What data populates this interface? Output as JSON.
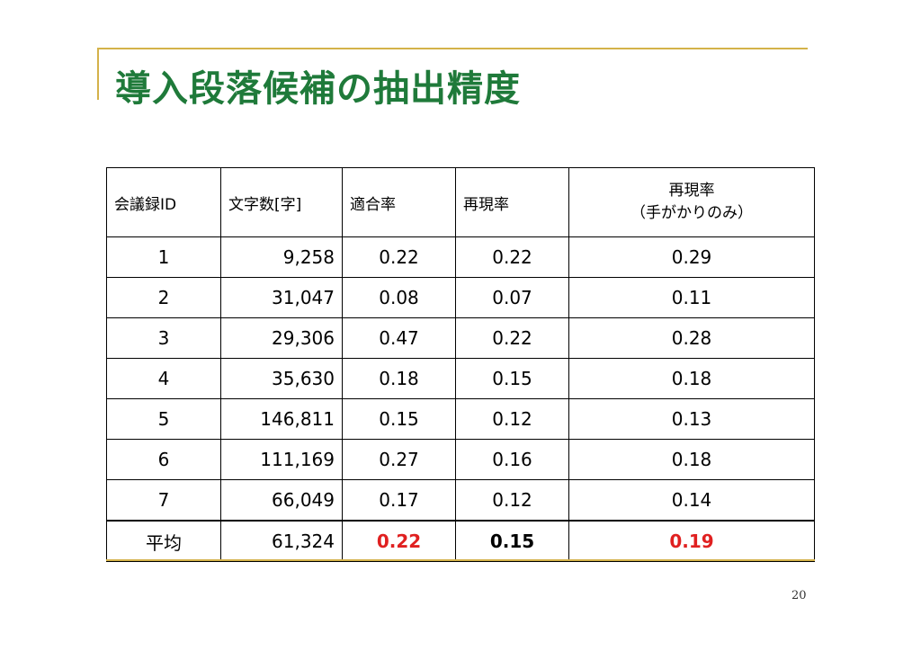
{
  "slide": {
    "title": "導入段落候補の抽出精度",
    "page_number": "20"
  },
  "colors": {
    "title": "#1f7a3a",
    "accent": "#d4b24a",
    "highlight": "#e02020"
  },
  "table": {
    "headers": {
      "id": "会議録ID",
      "chars": "文字数[字]",
      "precision": "適合率",
      "recall": "再現率",
      "recall_cue_line1": "再現率",
      "recall_cue_line2": "（手がかりのみ）"
    },
    "rows": [
      {
        "id": "1",
        "chars": "9,258",
        "precision": "0.22",
        "recall": "0.22",
        "recall_cue": "0.29"
      },
      {
        "id": "2",
        "chars": "31,047",
        "precision": "0.08",
        "recall": "0.07",
        "recall_cue": "0.11"
      },
      {
        "id": "3",
        "chars": "29,306",
        "precision": "0.47",
        "recall": "0.22",
        "recall_cue": "0.28"
      },
      {
        "id": "4",
        "chars": "35,630",
        "precision": "0.18",
        "recall": "0.15",
        "recall_cue": "0.18"
      },
      {
        "id": "5",
        "chars": "146,811",
        "precision": "0.15",
        "recall": "0.12",
        "recall_cue": "0.13"
      },
      {
        "id": "6",
        "chars": "111,169",
        "precision": "0.27",
        "recall": "0.16",
        "recall_cue": "0.18"
      },
      {
        "id": "7",
        "chars": "66,049",
        "precision": "0.17",
        "recall": "0.12",
        "recall_cue": "0.14"
      }
    ],
    "average": {
      "label": "平均",
      "chars": "61,324",
      "precision": "0.22",
      "recall": "0.15",
      "recall_cue": "0.19"
    }
  }
}
